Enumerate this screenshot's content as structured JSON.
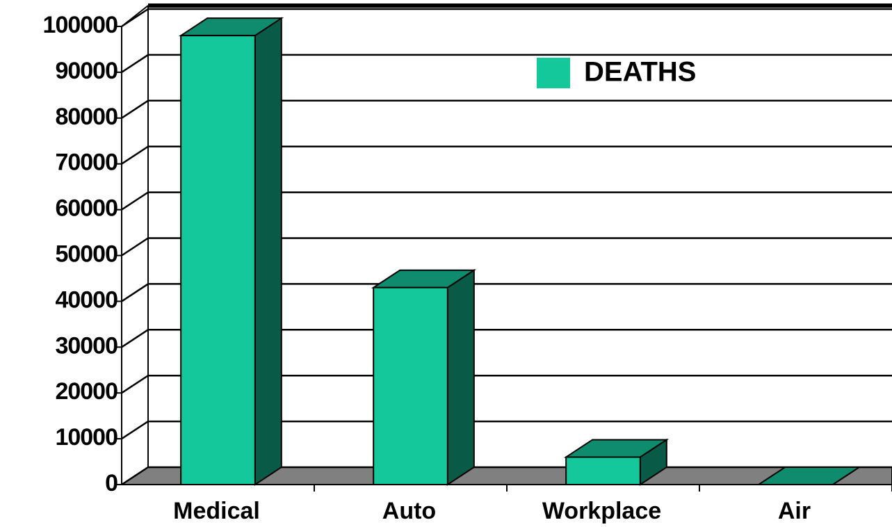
{
  "chart_data": {
    "type": "bar3d",
    "categories": [
      "Medical",
      "Auto",
      "Workplace",
      "Air"
    ],
    "series": [
      {
        "name": "DEATHS",
        "color": "#14c89b",
        "values": [
          98000,
          43000,
          6000,
          0
        ]
      }
    ],
    "ylim": [
      0,
      100000
    ],
    "yticks": [
      0,
      10000,
      20000,
      30000,
      40000,
      50000,
      60000,
      70000,
      80000,
      90000,
      100000
    ],
    "grid": true
  }
}
